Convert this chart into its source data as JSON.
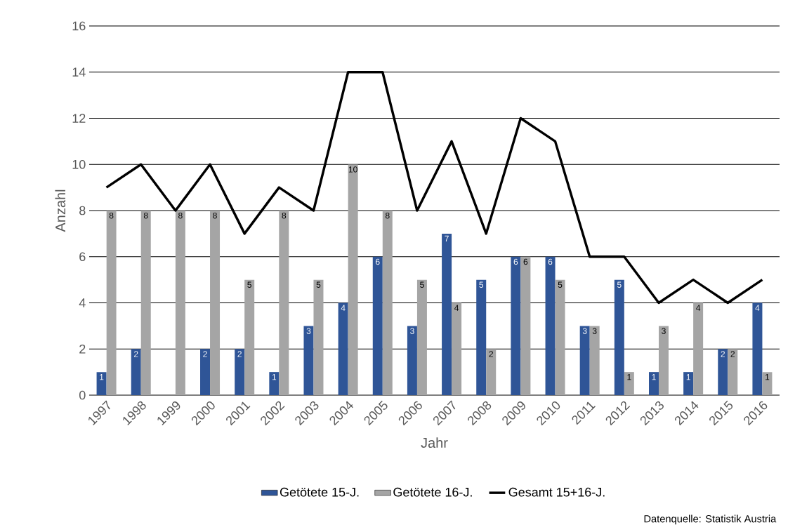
{
  "chart_data": {
    "type": "bar",
    "xlabel": "Jahr",
    "ylabel": "Anzahl",
    "categories": [
      "1997",
      "1998",
      "1999",
      "2000",
      "2001",
      "2002",
      "2003",
      "2004",
      "2005",
      "2006",
      "2007",
      "2008",
      "2009",
      "2010",
      "2011",
      "2012",
      "2013",
      "2014",
      "2015",
      "2016"
    ],
    "series": [
      {
        "name": "Getötete 15-J.",
        "color": "#2f5597",
        "values": [
          1,
          2,
          0,
          2,
          2,
          1,
          3,
          4,
          6,
          3,
          7,
          5,
          6,
          6,
          3,
          5,
          1,
          1,
          2,
          4
        ],
        "value_labels": [
          "1",
          "2",
          null,
          "2",
          "2",
          "1",
          "3",
          "4",
          "6",
          "3",
          "7",
          "5",
          "6",
          "6",
          "3",
          "5",
          "1",
          "1",
          "2",
          "4"
        ]
      },
      {
        "name": "Getötete 16-J.",
        "color": "#a5a5a5",
        "values": [
          8,
          8,
          8,
          8,
          5,
          8,
          5,
          10,
          8,
          5,
          4,
          2,
          6,
          5,
          3,
          1,
          3,
          4,
          2,
          1
        ],
        "value_labels": [
          "8",
          "8",
          "8",
          "8",
          "5",
          "8",
          "5",
          "10",
          "8",
          "5",
          "4",
          "2",
          "6",
          "5",
          "3",
          "1",
          "3",
          "4",
          "2",
          "1"
        ]
      },
      {
        "name": "Gesamt 15+16-J.",
        "type": "line",
        "color": "#000000",
        "values": [
          9,
          10,
          8,
          10,
          7,
          9,
          8,
          14,
          14,
          8,
          11,
          7,
          12,
          11,
          6,
          6,
          4,
          5,
          4,
          5
        ]
      }
    ],
    "ylim": [
      0,
      16
    ],
    "yticks": [
      0,
      2,
      4,
      6,
      8,
      10,
      12,
      14,
      16
    ],
    "grid": "y",
    "legend": "bottom",
    "annotations": [
      "Datenquelle: Statistik Austria"
    ]
  }
}
